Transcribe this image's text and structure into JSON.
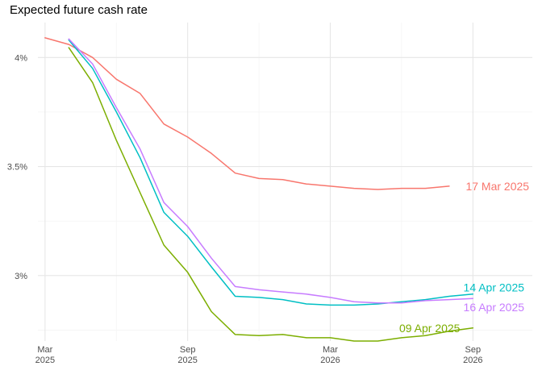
{
  "chart_data": {
    "type": "line",
    "title": "Expected future cash rate",
    "xlabel": "",
    "ylabel": "",
    "x_unit": "months since Mar 2025",
    "xlim": [
      -0.3,
      20.5
    ],
    "ylim": [
      2.7,
      4.16
    ],
    "x_ticks": [
      {
        "value": 0,
        "label": [
          "Mar",
          "2025"
        ]
      },
      {
        "value": 6,
        "label": [
          "Sep",
          "2025"
        ]
      },
      {
        "value": 12,
        "label": [
          "Mar",
          "2026"
        ]
      },
      {
        "value": 18,
        "label": [
          "Sep",
          "2026"
        ]
      }
    ],
    "y_ticks": [
      {
        "value": 3.0,
        "label": "3%"
      },
      {
        "value": 3.5,
        "label": "3.5%"
      },
      {
        "value": 4.0,
        "label": "4%"
      }
    ],
    "grid": true,
    "legend": "direct labels at line ends",
    "series": [
      {
        "name": "17 Mar 2025",
        "color": "#F8766D",
        "x": [
          0,
          1,
          2,
          3,
          4,
          5,
          6,
          7,
          8,
          9,
          10,
          11,
          12,
          13,
          14,
          15,
          16,
          17
        ],
        "values": [
          4.09,
          4.06,
          4.0,
          3.9,
          3.835,
          3.695,
          3.635,
          3.56,
          3.47,
          3.445,
          3.44,
          3.42,
          3.41,
          3.4,
          3.395,
          3.4,
          3.4,
          3.41
        ]
      },
      {
        "name": "14 Apr 2025",
        "color": "#00BFC4",
        "x": [
          1,
          2,
          3,
          4,
          5,
          6,
          7,
          8,
          9,
          10,
          11,
          12,
          13,
          14,
          15,
          16,
          17,
          18
        ],
        "values": [
          4.08,
          3.95,
          3.75,
          3.54,
          3.29,
          3.18,
          3.04,
          2.905,
          2.9,
          2.89,
          2.87,
          2.865,
          2.865,
          2.87,
          2.88,
          2.89,
          2.905,
          2.915
        ]
      },
      {
        "name": "16 Apr 2025",
        "color": "#C77CFF",
        "x": [
          1,
          2,
          3,
          4,
          5,
          6,
          7,
          8,
          9,
          10,
          11,
          12,
          13,
          14,
          15,
          16,
          17,
          18
        ],
        "values": [
          4.085,
          3.97,
          3.77,
          3.58,
          3.335,
          3.225,
          3.08,
          2.95,
          2.935,
          2.925,
          2.915,
          2.9,
          2.88,
          2.875,
          2.875,
          2.885,
          2.89,
          2.895
        ]
      },
      {
        "name": "09 Apr 2025",
        "color": "#7CAE00",
        "x": [
          1,
          2,
          3,
          4,
          5,
          6,
          7,
          8,
          9,
          10,
          11,
          12,
          13,
          14,
          15,
          16,
          17,
          18
        ],
        "values": [
          4.045,
          3.885,
          3.62,
          3.38,
          3.14,
          3.015,
          2.835,
          2.73,
          2.725,
          2.73,
          2.715,
          2.715,
          2.7,
          2.7,
          2.715,
          2.725,
          2.745,
          2.76
        ]
      }
    ]
  }
}
